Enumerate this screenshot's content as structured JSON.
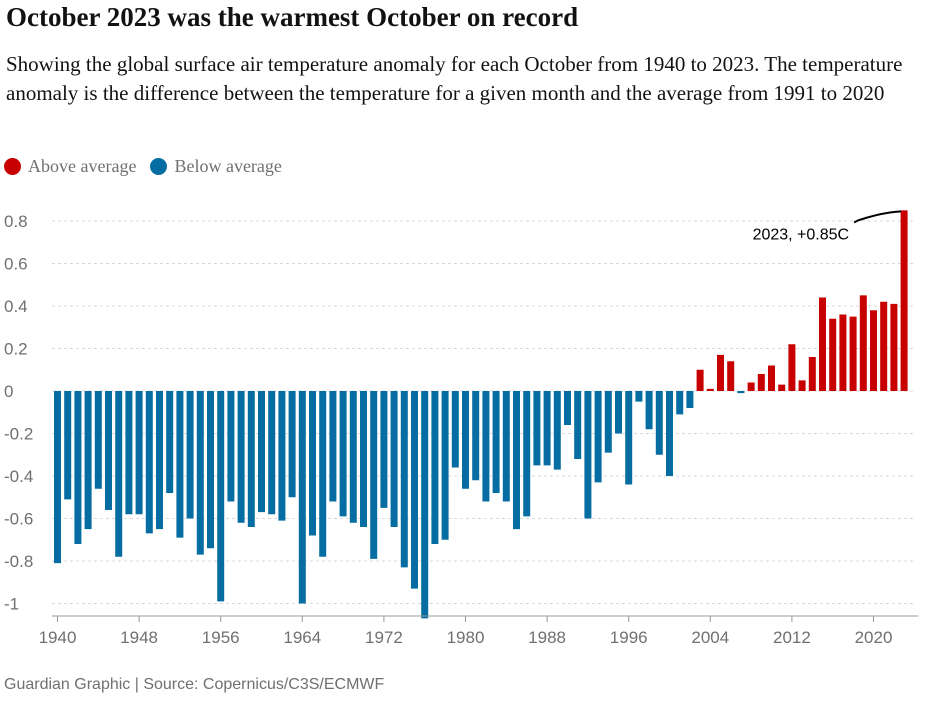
{
  "title": "October 2023 was the warmest October on record",
  "subtitle": "Showing the global surface air temperature anomaly for each October from 1940 to 2023. The temperature anomaly is the difference between the temperature for a given month and the average from 1991 to 2020",
  "legend": {
    "above_label": "Above average",
    "below_label": "Below average",
    "above_color": "#c70000",
    "below_color": "#056da1"
  },
  "source": "Guardian Graphic | Source: Copernicus/C3S/ECMWF",
  "chart_data": {
    "type": "bar",
    "x": [
      1940,
      1941,
      1942,
      1943,
      1944,
      1945,
      1946,
      1947,
      1948,
      1949,
      1950,
      1951,
      1952,
      1953,
      1954,
      1955,
      1956,
      1957,
      1958,
      1959,
      1960,
      1961,
      1962,
      1963,
      1964,
      1965,
      1966,
      1967,
      1968,
      1969,
      1970,
      1971,
      1972,
      1973,
      1974,
      1975,
      1976,
      1977,
      1978,
      1979,
      1980,
      1981,
      1982,
      1983,
      1984,
      1985,
      1986,
      1987,
      1988,
      1989,
      1990,
      1991,
      1992,
      1993,
      1994,
      1995,
      1996,
      1997,
      1998,
      1999,
      2000,
      2001,
      2002,
      2003,
      2004,
      2005,
      2006,
      2007,
      2008,
      2009,
      2010,
      2011,
      2012,
      2013,
      2014,
      2015,
      2016,
      2017,
      2018,
      2019,
      2020,
      2021,
      2022,
      2023
    ],
    "values": [
      -0.81,
      -0.51,
      -0.72,
      -0.65,
      -0.46,
      -0.56,
      -0.78,
      -0.58,
      -0.58,
      -0.67,
      -0.65,
      -0.48,
      -0.69,
      -0.6,
      -0.77,
      -0.74,
      -0.99,
      -0.52,
      -0.62,
      -0.64,
      -0.57,
      -0.58,
      -0.61,
      -0.5,
      -1.0,
      -0.68,
      -0.78,
      -0.52,
      -0.59,
      -0.62,
      -0.64,
      -0.79,
      -0.55,
      -0.64,
      -0.83,
      -0.93,
      -1.07,
      -0.72,
      -0.7,
      -0.36,
      -0.46,
      -0.42,
      -0.52,
      -0.48,
      -0.52,
      -0.65,
      -0.59,
      -0.35,
      -0.35,
      -0.37,
      -0.16,
      -0.32,
      -0.6,
      -0.43,
      -0.29,
      -0.2,
      -0.44,
      -0.05,
      -0.18,
      -0.3,
      -0.4,
      -0.11,
      -0.08,
      0.1,
      0.01,
      0.17,
      0.14,
      -0.01,
      0.04,
      0.08,
      0.12,
      0.03,
      0.22,
      0.05,
      0.16,
      0.44,
      0.34,
      0.36,
      0.35,
      0.45,
      0.38,
      0.42,
      0.41,
      0.85
    ],
    "x_ticks": [
      "1940",
      "1948",
      "1956",
      "1964",
      "1972",
      "1980",
      "1988",
      "1996",
      "2004",
      "2012",
      "2020"
    ],
    "y_ticks": [
      "0.8",
      "0.6",
      "0.4",
      "0.2",
      "0",
      "-0.2",
      "-0.4",
      "-0.6",
      "-0.8",
      "-1"
    ],
    "ylim": [
      -1.07,
      0.85
    ],
    "grid": true,
    "annotation": "2023, +0.85C"
  }
}
